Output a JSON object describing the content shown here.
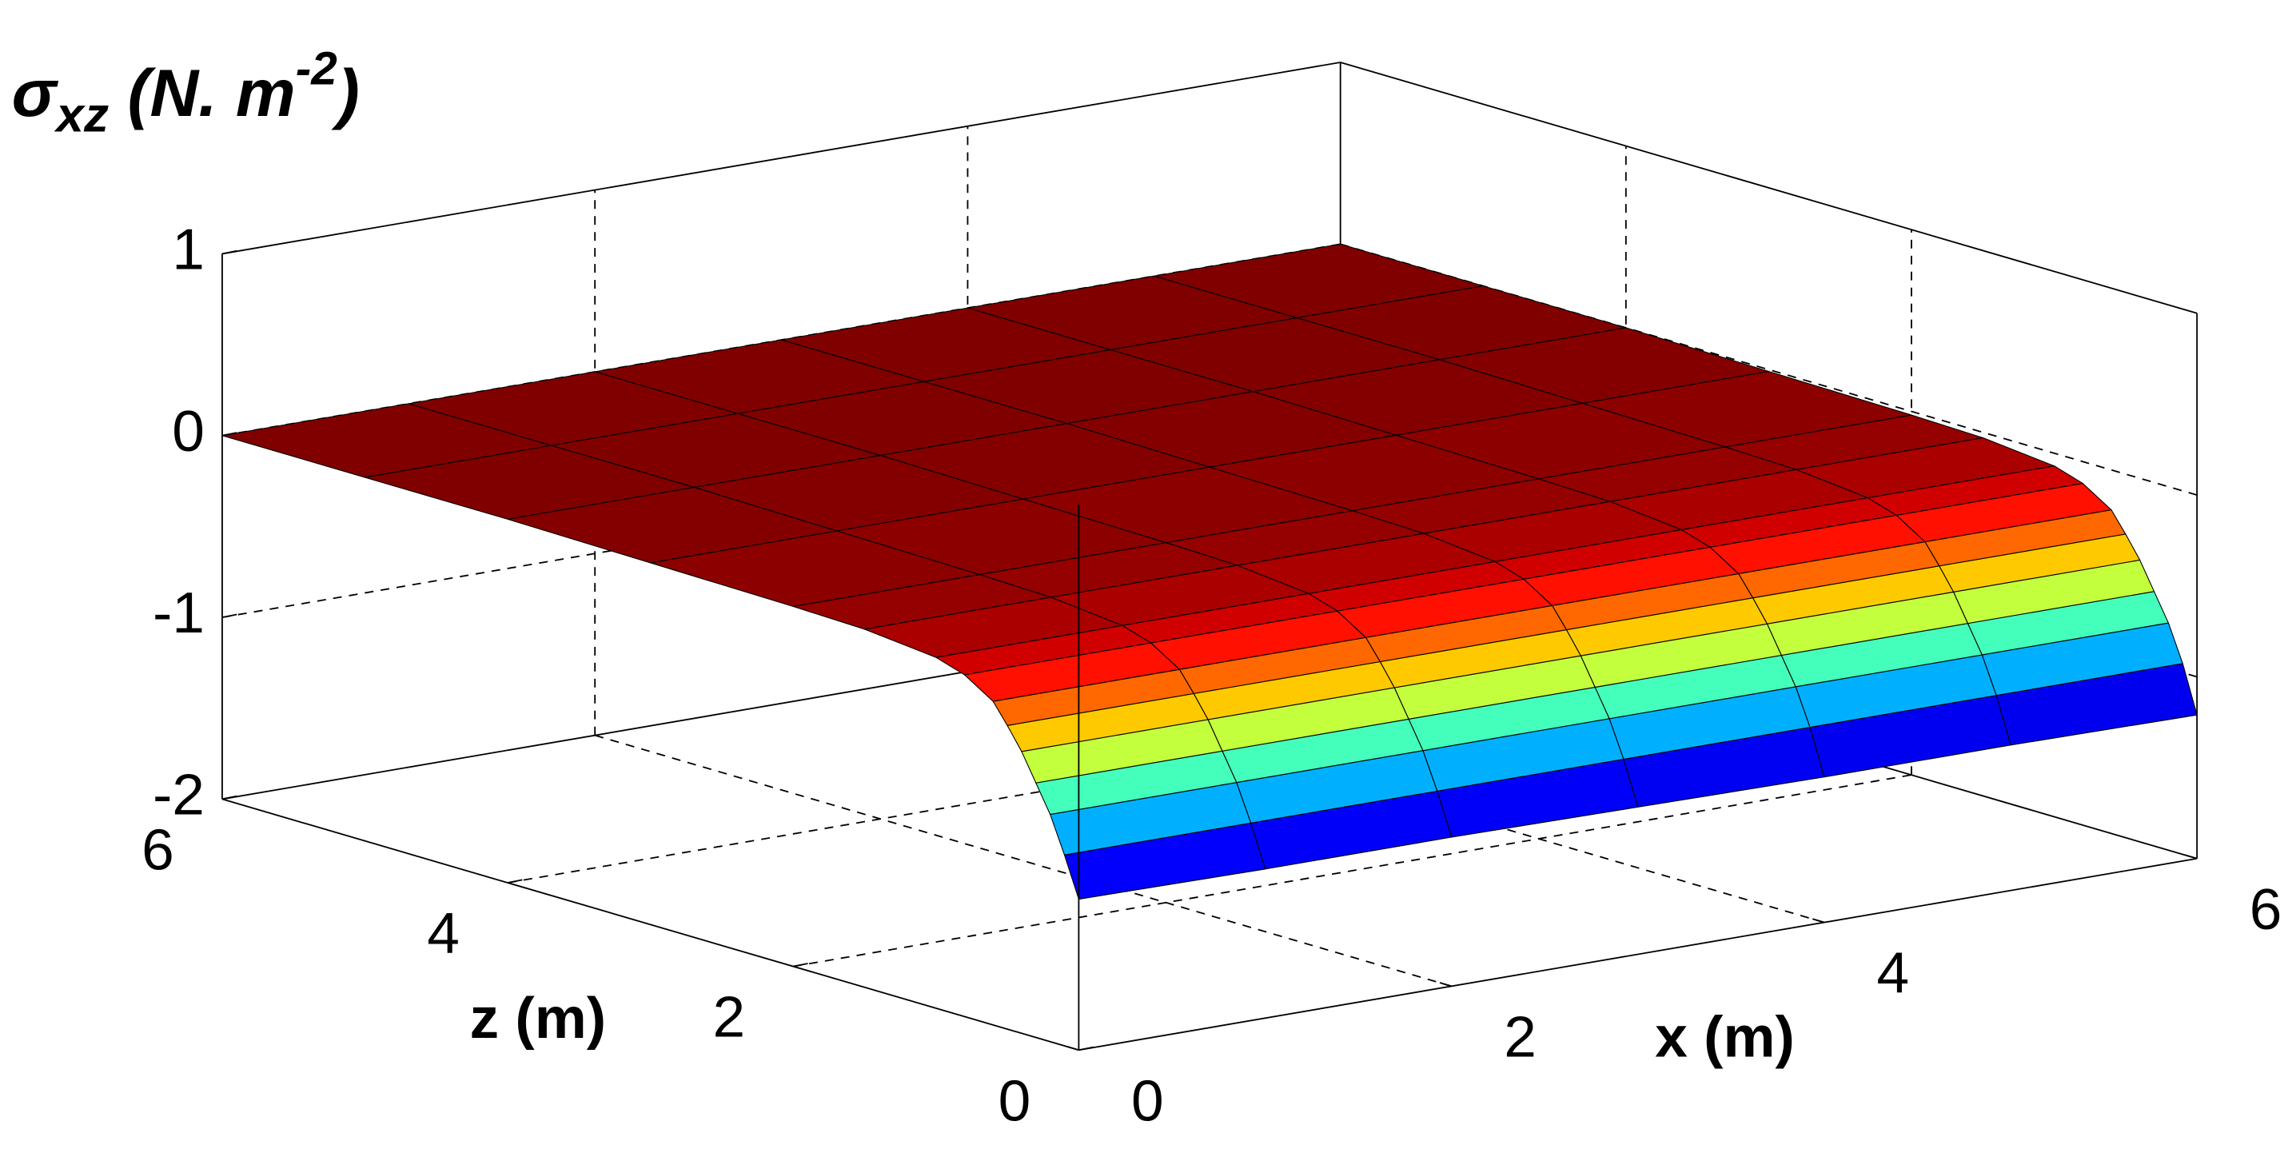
{
  "chart_data": {
    "type": "surface",
    "colormap": "jet",
    "grid": true,
    "ylabel": [
      "σ",
      "xz",
      " (N. m",
      "-2",
      ")"
    ],
    "xlabel": "x (m)",
    "zlabel": "z (m)",
    "xlim": [
      0,
      6
    ],
    "xticks": [
      0,
      2,
      4,
      6
    ],
    "zlim": [
      0,
      6
    ],
    "zticks": [
      0,
      2,
      4,
      6
    ],
    "ylim": [
      -2,
      1
    ],
    "yticks": [
      -2,
      -1,
      0,
      1
    ],
    "x": [
      0,
      1,
      2,
      3,
      4,
      5,
      6
    ],
    "z": [
      0,
      0.1,
      0.2,
      0.3,
      0.4,
      0.5,
      0.6,
      0.8,
      1,
      1.5,
      2,
      3,
      4,
      5,
      6
    ],
    "values": [
      [
        -1.17,
        -1.18,
        -1.18,
        -1.19,
        -1.2,
        -1.2,
        -1.21
      ],
      [
        -0.95,
        -0.95,
        -0.95,
        -0.95,
        -0.95,
        -0.95,
        -0.95
      ],
      [
        -0.75,
        -0.75,
        -0.75,
        -0.75,
        -0.75,
        -0.75,
        -0.75
      ],
      [
        -0.6,
        -0.6,
        -0.6,
        -0.6,
        -0.6,
        -0.6,
        -0.6
      ],
      [
        -0.45,
        -0.45,
        -0.45,
        -0.45,
        -0.45,
        -0.45,
        -0.45
      ],
      [
        -0.33,
        -0.33,
        -0.33,
        -0.33,
        -0.33,
        -0.33,
        -0.33
      ],
      [
        -0.22,
        -0.22,
        -0.22,
        -0.22,
        -0.22,
        -0.22,
        -0.22
      ],
      [
        -0.12,
        -0.12,
        -0.12,
        -0.12,
        -0.12,
        -0.12,
        -0.12
      ],
      [
        -0.07,
        -0.07,
        -0.07,
        -0.07,
        -0.07,
        -0.07,
        -0.07
      ],
      [
        -0.03,
        -0.03,
        -0.03,
        -0.03,
        -0.03,
        -0.03,
        -0.03
      ],
      [
        -0.02,
        -0.02,
        -0.02,
        -0.02,
        -0.02,
        -0.02,
        -0.02
      ],
      [
        -0.01,
        -0.01,
        -0.01,
        -0.01,
        -0.01,
        -0.01,
        -0.01
      ],
      [
        0,
        0,
        0,
        0,
        0,
        0,
        0
      ],
      [
        0,
        0,
        0,
        0,
        0,
        0,
        0
      ],
      [
        0,
        0,
        0,
        0,
        0,
        0,
        0
      ]
    ]
  }
}
